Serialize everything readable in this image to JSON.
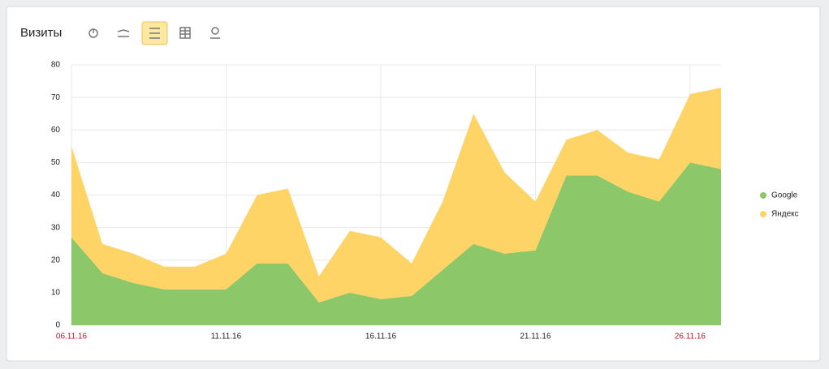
{
  "chart_data": {
    "type": "stacked_area",
    "title": "Визиты",
    "categories": [
      "06.11.16",
      null,
      null,
      null,
      null,
      "11.11.16",
      null,
      null,
      null,
      null,
      "16.11.16",
      null,
      null,
      null,
      null,
      "21.11.16",
      null,
      null,
      null,
      null,
      "26.11.16",
      null
    ],
    "series": [
      {
        "name": "Google",
        "color": "#8cc76a",
        "values": [
          27,
          16,
          13,
          11,
          11,
          11,
          19,
          19,
          7,
          10,
          8,
          9,
          17,
          25,
          22,
          23,
          46,
          46,
          41,
          38,
          50,
          48
        ]
      },
      {
        "name": "Яндекс",
        "color": "#ffd466",
        "values": [
          28,
          9,
          9,
          7,
          7,
          11,
          21,
          23,
          8,
          19,
          19,
          10,
          21,
          40,
          25,
          15,
          11,
          14,
          12,
          13,
          21,
          25
        ]
      }
    ],
    "ylim": [
      0,
      80
    ],
    "yticks": [
      0,
      10,
      20,
      30,
      40,
      50,
      60,
      70,
      80
    ],
    "grid": true,
    "legend": "right",
    "weekend_label_color": "#c8102e"
  }
}
